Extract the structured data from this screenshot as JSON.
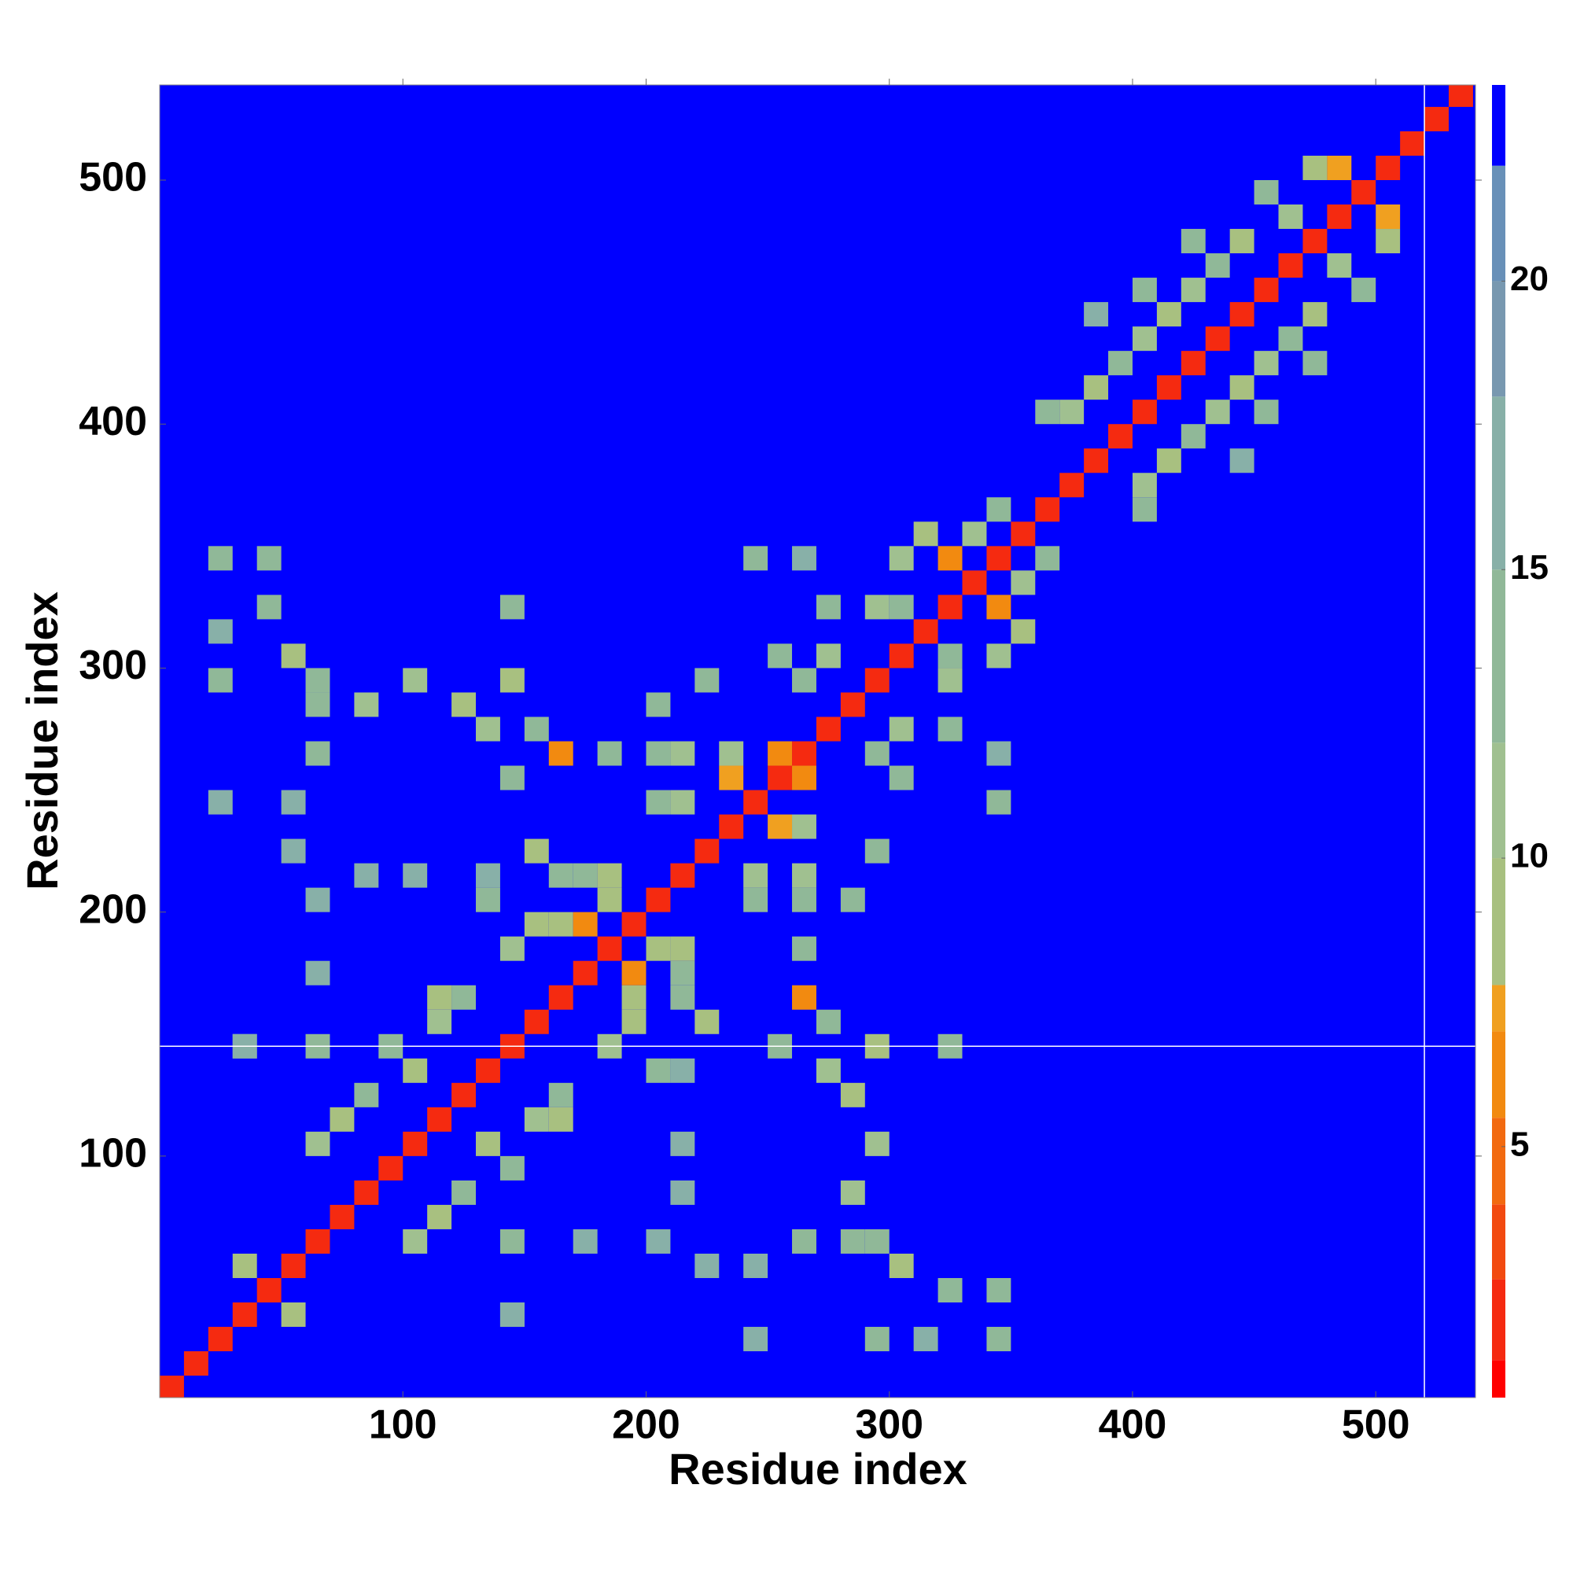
{
  "chart_data": {
    "type": "heatmap",
    "xlabel": "Residue index",
    "ylabel": "Residue index",
    "xlim": [
      0,
      541
    ],
    "ylim": [
      1,
      539
    ],
    "xticks": [
      100,
      200,
      300,
      400,
      500
    ],
    "yticks": [
      100,
      200,
      300,
      400,
      500
    ],
    "cell": 10,
    "symmetric": true,
    "cells": [
      [
        0,
        0,
        1.5
      ],
      [
        10,
        10,
        1.5
      ],
      [
        20,
        20,
        1.5
      ],
      [
        30,
        30,
        1.5
      ],
      [
        40,
        40,
        1.5
      ],
      [
        50,
        50,
        1.5
      ],
      [
        60,
        60,
        1.5
      ],
      [
        70,
        70,
        1.5
      ],
      [
        80,
        80,
        1.5
      ],
      [
        90,
        90,
        1.5
      ],
      [
        100,
        100,
        1.5
      ],
      [
        110,
        110,
        1.5
      ],
      [
        120,
        120,
        1.5
      ],
      [
        130,
        130,
        1.5
      ],
      [
        140,
        140,
        1.5
      ],
      [
        150,
        150,
        1.5
      ],
      [
        160,
        160,
        1.5
      ],
      [
        170,
        170,
        1.5
      ],
      [
        180,
        180,
        1.5
      ],
      [
        190,
        190,
        1.5
      ],
      [
        200,
        200,
        1.5
      ],
      [
        210,
        210,
        1.5
      ],
      [
        220,
        220,
        1.5
      ],
      [
        230,
        230,
        1.5
      ],
      [
        240,
        240,
        1.5
      ],
      [
        250,
        250,
        1.5
      ],
      [
        260,
        260,
        1.5
      ],
      [
        270,
        270,
        1.5
      ],
      [
        280,
        280,
        1.5
      ],
      [
        290,
        290,
        1.5
      ],
      [
        300,
        300,
        1.5
      ],
      [
        310,
        310,
        1.5
      ],
      [
        320,
        320,
        1.5
      ],
      [
        330,
        330,
        1.5
      ],
      [
        340,
        340,
        1.5
      ],
      [
        350,
        350,
        1.5
      ],
      [
        360,
        360,
        1.5
      ],
      [
        370,
        370,
        1.5
      ],
      [
        380,
        380,
        1.5
      ],
      [
        390,
        390,
        1.5
      ],
      [
        400,
        400,
        1.5
      ],
      [
        410,
        410,
        1.5
      ],
      [
        420,
        420,
        1.5
      ],
      [
        430,
        430,
        1.5
      ],
      [
        440,
        440,
        1.5
      ],
      [
        450,
        450,
        1.5
      ],
      [
        460,
        460,
        1.5
      ],
      [
        470,
        470,
        1.5
      ],
      [
        480,
        480,
        1.5
      ],
      [
        490,
        490,
        1.5
      ],
      [
        500,
        500,
        1.5
      ],
      [
        510,
        510,
        1.5
      ],
      [
        520,
        520,
        1.5
      ],
      [
        530,
        530,
        1.5
      ],
      [
        30,
        50,
        8
      ],
      [
        20,
        340,
        14
      ],
      [
        20,
        310,
        15
      ],
      [
        20,
        290,
        13
      ],
      [
        20,
        240,
        16
      ],
      [
        30,
        140,
        16
      ],
      [
        40,
        340,
        12
      ],
      [
        40,
        320,
        13
      ],
      [
        50,
        300,
        8
      ],
      [
        60,
        290,
        12
      ],
      [
        80,
        280,
        10
      ],
      [
        100,
        290,
        11
      ],
      [
        120,
        280,
        9
      ],
      [
        130,
        270,
        10
      ],
      [
        140,
        290,
        8
      ],
      [
        150,
        270,
        12
      ],
      [
        160,
        260,
        6
      ],
      [
        140,
        320,
        14
      ],
      [
        180,
        260,
        12
      ],
      [
        60,
        260,
        14
      ],
      [
        50,
        240,
        15
      ],
      [
        50,
        220,
        15
      ],
      [
        60,
        200,
        15
      ],
      [
        80,
        210,
        17
      ],
      [
        100,
        210,
        16
      ],
      [
        130,
        210,
        16
      ],
      [
        140,
        250,
        12
      ],
      [
        150,
        220,
        9
      ],
      [
        170,
        210,
        12
      ],
      [
        160,
        190,
        9
      ],
      [
        180,
        200,
        8
      ],
      [
        170,
        190,
        6
      ],
      [
        180,
        210,
        9
      ],
      [
        160,
        210,
        12
      ],
      [
        200,
        260,
        12
      ],
      [
        210,
        240,
        10
      ],
      [
        200,
        280,
        14
      ],
      [
        220,
        290,
        13
      ],
      [
        240,
        340,
        12
      ],
      [
        250,
        300,
        14
      ],
      [
        250,
        260,
        6
      ],
      [
        230,
        260,
        10
      ],
      [
        260,
        290,
        12
      ],
      [
        270,
        300,
        10
      ],
      [
        300,
        340,
        10
      ],
      [
        300,
        320,
        12
      ],
      [
        310,
        350,
        8
      ],
      [
        320,
        340,
        6
      ],
      [
        330,
        350,
        10
      ],
      [
        340,
        360,
        12
      ],
      [
        370,
        400,
        10
      ],
      [
        380,
        410,
        8
      ],
      [
        390,
        420,
        12
      ],
      [
        400,
        430,
        10
      ],
      [
        410,
        440,
        9
      ],
      [
        420,
        450,
        10
      ],
      [
        430,
        460,
        12
      ],
      [
        440,
        470,
        9
      ],
      [
        460,
        480,
        10
      ],
      [
        470,
        500,
        8
      ],
      [
        480,
        500,
        7
      ],
      [
        450,
        490,
        12
      ],
      [
        400,
        450,
        14
      ],
      [
        380,
        440,
        15
      ],
      [
        360,
        400,
        12
      ],
      [
        420,
        470,
        14
      ],
      [
        60,
        100,
        10
      ],
      [
        70,
        110,
        9
      ],
      [
        80,
        120,
        12
      ],
      [
        100,
        130,
        8
      ],
      [
        110,
        150,
        10
      ],
      [
        120,
        160,
        12
      ],
      [
        90,
        140,
        14
      ],
      [
        60,
        140,
        13
      ],
      [
        60,
        170,
        15
      ],
      [
        140,
        180,
        10
      ],
      [
        150,
        190,
        8
      ],
      [
        130,
        200,
        12
      ],
      [
        110,
        160,
        9
      ],
      [
        200,
        240,
        12
      ],
      [
        210,
        260,
        11
      ],
      [
        230,
        250,
        7
      ],
      [
        260,
        340,
        15
      ],
      [
        270,
        320,
        13
      ],
      [
        290,
        320,
        11
      ],
      [
        60,
        280,
        14
      ],
      [
        140,
        30,
        15
      ]
    ],
    "clim": [
      0.65,
      23.4
    ],
    "colorscale": [
      [
        0.65,
        "#ff0000"
      ],
      [
        1.3,
        "#f52a10"
      ],
      [
        2.7,
        "#f24a10"
      ],
      [
        4,
        "#f26a10"
      ],
      [
        5.5,
        "#f28a10"
      ],
      [
        7,
        "#f0a020"
      ],
      [
        7.8,
        "#a8c080"
      ],
      [
        10,
        "#a0c090"
      ],
      [
        12,
        "#90b898"
      ],
      [
        15,
        "#88b0a8"
      ],
      [
        18,
        "#7898b0"
      ],
      [
        20,
        "#6890b8"
      ],
      [
        22,
        "#0000ff"
      ]
    ],
    "cticks": [
      5,
      10,
      15,
      20
    ],
    "vlines": [
      520
    ],
    "hlines": [
      145
    ],
    "line_color": "#ffffff"
  }
}
